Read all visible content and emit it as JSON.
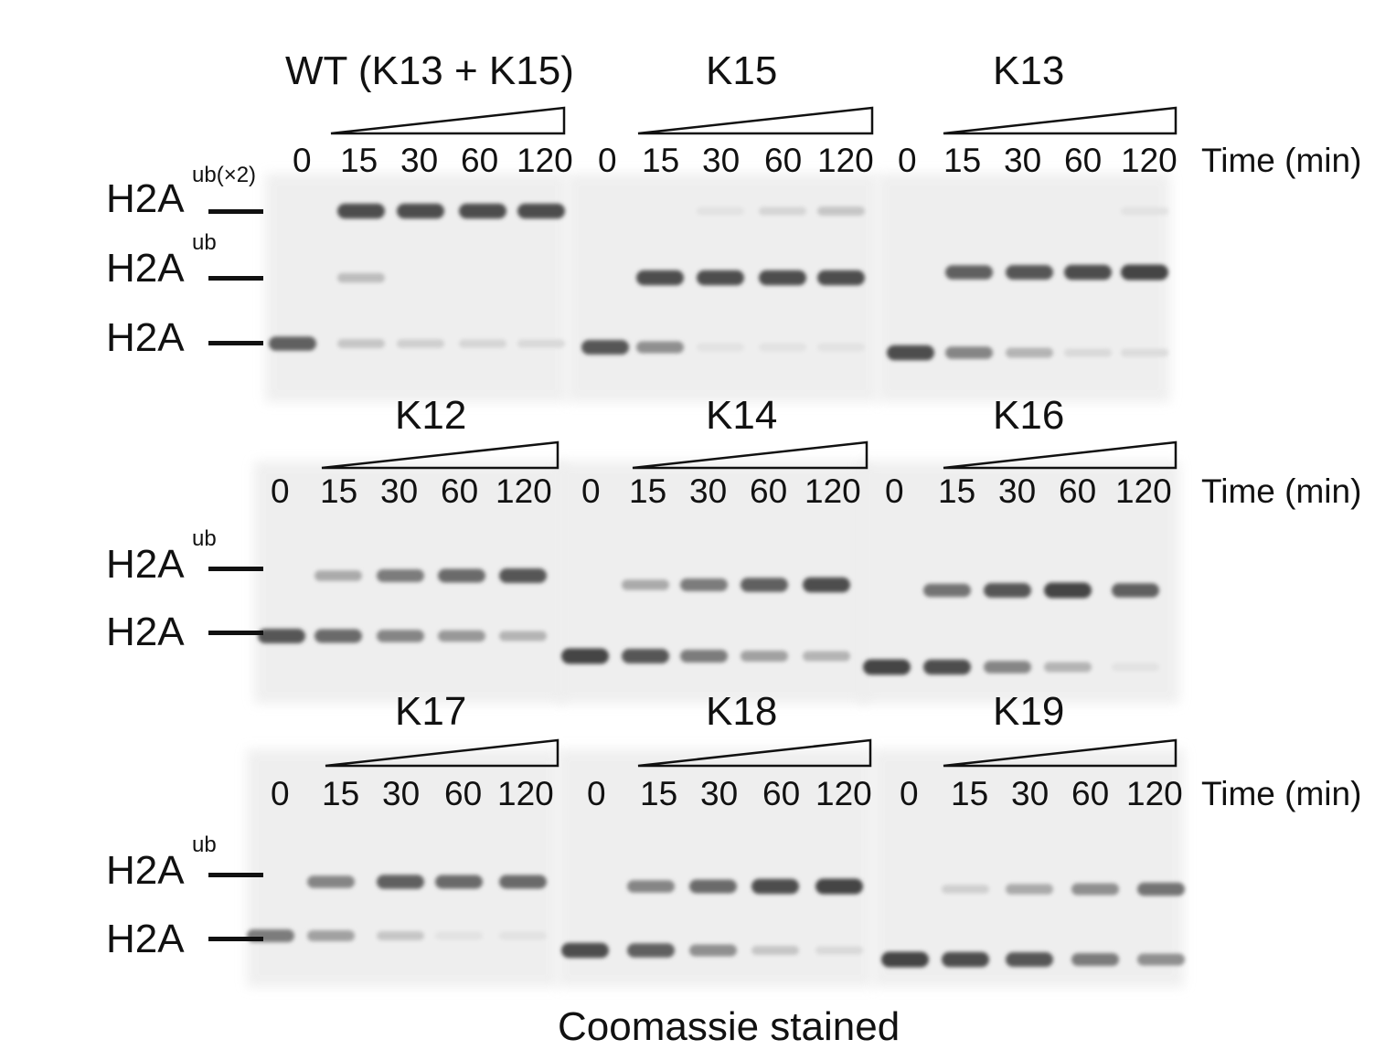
{
  "markers": {
    "h2a": "H2A",
    "ub2_sup": "ub(×2)",
    "ub_sup": "ub"
  },
  "time_label": "Time (min)",
  "caption": "Coomassie stained",
  "time_points": [
    "0",
    "15",
    "30",
    "60",
    "120"
  ],
  "rows": [
    {
      "panels": [
        {
          "title": "WT (K13 + K15)",
          "bands": {
            "ub2": [
              0,
              0.85,
              0.85,
              0.85,
              0.85
            ],
            "ub": [
              0,
              0.25,
              0,
              0,
              0
            ],
            "h2a": [
              0.75,
              0.2,
              0.15,
              0.12,
              0.1
            ]
          }
        },
        {
          "title": "K15",
          "bands": {
            "ub2": [
              0,
              0,
              0.05,
              0.12,
              0.2
            ],
            "ub": [
              0,
              0.85,
              0.85,
              0.85,
              0.85
            ],
            "h2a": [
              0.8,
              0.5,
              0.05,
              0.05,
              0.05
            ]
          }
        },
        {
          "title": "K13",
          "bands": {
            "ub2": [
              0,
              0,
              0,
              0,
              0.05
            ],
            "ub": [
              0,
              0.75,
              0.8,
              0.85,
              0.9
            ],
            "h2a": [
              0.85,
              0.55,
              0.3,
              0.1,
              0.08
            ]
          }
        }
      ]
    },
    {
      "panels": [
        {
          "title": "K12",
          "bands": {
            "ub": [
              0,
              0.35,
              0.6,
              0.7,
              0.8
            ],
            "h2a": [
              0.8,
              0.7,
              0.55,
              0.45,
              0.3
            ]
          }
        },
        {
          "title": "K14",
          "bands": {
            "ub": [
              0,
              0.35,
              0.6,
              0.75,
              0.85
            ],
            "h2a": [
              0.9,
              0.8,
              0.6,
              0.4,
              0.3
            ]
          }
        },
        {
          "title": "K16",
          "bands": {
            "ub": [
              0,
              0.65,
              0.8,
              0.9,
              0.75
            ],
            "h2a": [
              0.9,
              0.85,
              0.55,
              0.3,
              0.05
            ]
          }
        }
      ]
    },
    {
      "panels": [
        {
          "title": "K17",
          "bands": {
            "ub": [
              0,
              0.55,
              0.75,
              0.7,
              0.7
            ],
            "h2a": [
              0.6,
              0.4,
              0.2,
              0.05,
              0.05
            ]
          }
        },
        {
          "title": "K18",
          "bands": {
            "ub": [
              0,
              0.55,
              0.7,
              0.85,
              0.9
            ],
            "h2a": [
              0.85,
              0.75,
              0.5,
              0.2,
              0.1
            ]
          }
        },
        {
          "title": "K19",
          "bands": {
            "ub": [
              0,
              0.15,
              0.35,
              0.5,
              0.65
            ],
            "h2a": [
              0.9,
              0.85,
              0.8,
              0.6,
              0.5
            ]
          }
        }
      ]
    }
  ]
}
